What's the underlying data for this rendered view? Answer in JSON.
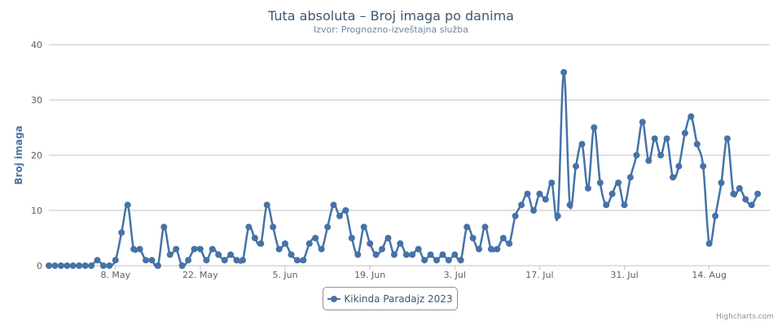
{
  "header": {
    "title": "Tuta absoluta – Broj imaga po danima",
    "subtitle": "Izvor: Prognozno-izveštajna služba"
  },
  "legend": {
    "label": "Kikinda Paradajz 2023"
  },
  "credits": {
    "label": "Highcharts.com"
  },
  "colors": {
    "series": "#4572a7",
    "grid": "#c0c0c0",
    "axis_text": "#606060",
    "title": "#3e576f"
  },
  "chart_data": {
    "type": "line",
    "title": "Tuta absoluta – Broj imaga po danima",
    "subtitle": "Izvor: Prognozno-izveštajna služba",
    "xlabel": "",
    "ylabel": "Broj imaga",
    "ylim": [
      0,
      40
    ],
    "yticks": [
      0,
      10,
      20,
      30,
      40
    ],
    "xlim": [
      "2023-04-27",
      "2023-08-24"
    ],
    "xticks": [
      "2023-05-08",
      "2023-05-22",
      "2023-06-05",
      "2023-06-19",
      "2023-07-03",
      "2023-07-17",
      "2023-07-31",
      "2023-08-14"
    ],
    "xtick_labels": [
      "8. May",
      "22. May",
      "5. Jun",
      "19. Jun",
      "3. Jul",
      "17. Jul",
      "31. Jul",
      "14. Aug"
    ],
    "grid": true,
    "legend_position": "bottom-center",
    "series": [
      {
        "name": "Kikinda Paradajz 2023",
        "points": [
          [
            "2023-04-27",
            0
          ],
          [
            "2023-04-28",
            0
          ],
          [
            "2023-04-29",
            0
          ],
          [
            "2023-04-30",
            0
          ],
          [
            "2023-05-01",
            0
          ],
          [
            "2023-05-02",
            0
          ],
          [
            "2023-05-03",
            0
          ],
          [
            "2023-05-04",
            0
          ],
          [
            "2023-05-05",
            1
          ],
          [
            "2023-05-06",
            0
          ],
          [
            "2023-05-07",
            0
          ],
          [
            "2023-05-08",
            1
          ],
          [
            "2023-05-09",
            6
          ],
          [
            "2023-05-10",
            11
          ],
          [
            "2023-05-11",
            3
          ],
          [
            "2023-05-12",
            3
          ],
          [
            "2023-05-13",
            1
          ],
          [
            "2023-05-14",
            1
          ],
          [
            "2023-05-15",
            0
          ],
          [
            "2023-05-16",
            7
          ],
          [
            "2023-05-17",
            2
          ],
          [
            "2023-05-18",
            3
          ],
          [
            "2023-05-19",
            0
          ],
          [
            "2023-05-20",
            1
          ],
          [
            "2023-05-21",
            3
          ],
          [
            "2023-05-22",
            3
          ],
          [
            "2023-05-23",
            1
          ],
          [
            "2023-05-24",
            3
          ],
          [
            "2023-05-25",
            2
          ],
          [
            "2023-05-26",
            1
          ],
          [
            "2023-05-27",
            2
          ],
          [
            "2023-05-28",
            1
          ],
          [
            "2023-05-29",
            1
          ],
          [
            "2023-05-30",
            7
          ],
          [
            "2023-05-31",
            5
          ],
          [
            "2023-06-01",
            4
          ],
          [
            "2023-06-02",
            11
          ],
          [
            "2023-06-03",
            7
          ],
          [
            "2023-06-04",
            3
          ],
          [
            "2023-06-05",
            4
          ],
          [
            "2023-06-06",
            2
          ],
          [
            "2023-06-07",
            1
          ],
          [
            "2023-06-08",
            1
          ],
          [
            "2023-06-09",
            4
          ],
          [
            "2023-06-10",
            5
          ],
          [
            "2023-06-11",
            3
          ],
          [
            "2023-06-12",
            7
          ],
          [
            "2023-06-13",
            11
          ],
          [
            "2023-06-14",
            9
          ],
          [
            "2023-06-15",
            10
          ],
          [
            "2023-06-16",
            5
          ],
          [
            "2023-06-17",
            2
          ],
          [
            "2023-06-18",
            7
          ],
          [
            "2023-06-19",
            4
          ],
          [
            "2023-06-20",
            2
          ],
          [
            "2023-06-21",
            3
          ],
          [
            "2023-06-22",
            5
          ],
          [
            "2023-06-23",
            2
          ],
          [
            "2023-06-24",
            4
          ],
          [
            "2023-06-25",
            2
          ],
          [
            "2023-06-26",
            2
          ],
          [
            "2023-06-27",
            3
          ],
          [
            "2023-06-28",
            1
          ],
          [
            "2023-06-29",
            2
          ],
          [
            "2023-06-30",
            1
          ],
          [
            "2023-07-01",
            2
          ],
          [
            "2023-07-02",
            1
          ],
          [
            "2023-07-03",
            2
          ],
          [
            "2023-07-04",
            1
          ],
          [
            "2023-07-05",
            7
          ],
          [
            "2023-07-06",
            5
          ],
          [
            "2023-07-07",
            3
          ],
          [
            "2023-07-08",
            7
          ],
          [
            "2023-07-09",
            3
          ],
          [
            "2023-07-10",
            3
          ],
          [
            "2023-07-11",
            5
          ],
          [
            "2023-07-12",
            4
          ],
          [
            "2023-07-13",
            9
          ],
          [
            "2023-07-14",
            11
          ],
          [
            "2023-07-15",
            13
          ],
          [
            "2023-07-16",
            10
          ],
          [
            "2023-07-17",
            13
          ],
          [
            "2023-07-18",
            12
          ],
          [
            "2023-07-19",
            15
          ],
          [
            "2023-07-20",
            9
          ],
          [
            "2023-07-21",
            35
          ],
          [
            "2023-07-22",
            11
          ],
          [
            "2023-07-23",
            18
          ],
          [
            "2023-07-24",
            22
          ],
          [
            "2023-07-25",
            14
          ],
          [
            "2023-07-26",
            25
          ],
          [
            "2023-07-27",
            15
          ],
          [
            "2023-07-28",
            11
          ],
          [
            "2023-07-29",
            13
          ],
          [
            "2023-07-30",
            15
          ],
          [
            "2023-07-31",
            11
          ],
          [
            "2023-08-01",
            16
          ],
          [
            "2023-08-02",
            20
          ],
          [
            "2023-08-03",
            26
          ],
          [
            "2023-08-04",
            19
          ],
          [
            "2023-08-05",
            23
          ],
          [
            "2023-08-06",
            20
          ],
          [
            "2023-08-07",
            23
          ],
          [
            "2023-08-08",
            16
          ],
          [
            "2023-08-09",
            18
          ],
          [
            "2023-08-10",
            24
          ],
          [
            "2023-08-11",
            27
          ],
          [
            "2023-08-12",
            22
          ],
          [
            "2023-08-13",
            18
          ],
          [
            "2023-08-14",
            4
          ],
          [
            "2023-08-15",
            9
          ],
          [
            "2023-08-16",
            15
          ],
          [
            "2023-08-17",
            23
          ],
          [
            "2023-08-18",
            13
          ],
          [
            "2023-08-19",
            14
          ],
          [
            "2023-08-20",
            12
          ],
          [
            "2023-08-21",
            11
          ],
          [
            "2023-08-22",
            13
          ]
        ]
      }
    ]
  }
}
